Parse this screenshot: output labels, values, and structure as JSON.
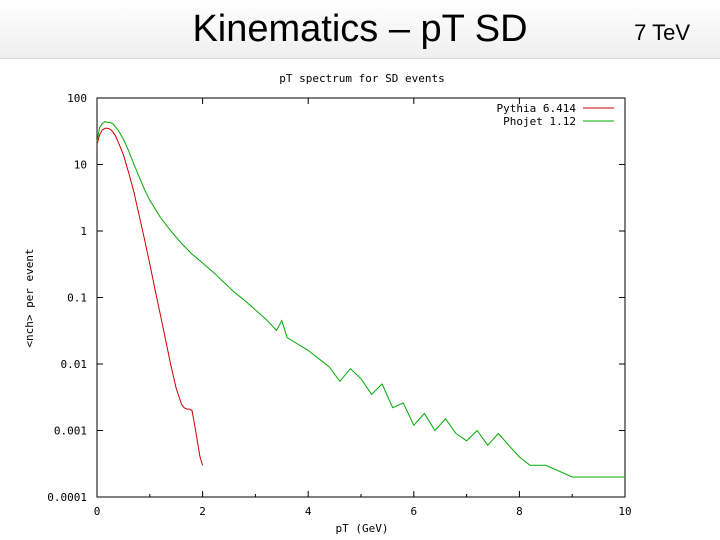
{
  "slide": {
    "title": "Kinematics – pT SD",
    "energy": "7 TeV"
  },
  "chart_data": {
    "type": "line",
    "title": "pT spectrum for SD events",
    "xlabel": "pT (GeV)",
    "ylabel": "<nch> per event",
    "xlim": [
      0,
      10
    ],
    "ylim": [
      0.0001,
      100
    ],
    "yscale": "log",
    "x_ticks": [
      "0",
      "2",
      "4",
      "6",
      "8",
      "10"
    ],
    "y_ticks": [
      "0.0001",
      "0.001",
      "0.01",
      "0.1",
      "1",
      "10",
      "100"
    ],
    "y_tick_values": [
      0.0001,
      0.001,
      0.01,
      0.1,
      1,
      10,
      100
    ],
    "grid": false,
    "legend_position": "top-right",
    "series": [
      {
        "name": "Pythia 6.414",
        "color": "#cc0000",
        "x": [
          0,
          0.05,
          0.1,
          0.15,
          0.2,
          0.25,
          0.3,
          0.35,
          0.4,
          0.5,
          0.6,
          0.7,
          0.8,
          0.9,
          1.0,
          1.1,
          1.2,
          1.3,
          1.4,
          1.5,
          1.6,
          1.65,
          1.7,
          1.75,
          1.8,
          1.85,
          1.9,
          1.95,
          2.0
        ],
        "y": [
          20,
          28,
          33,
          35,
          35,
          34,
          31,
          27,
          22,
          14,
          7.5,
          3.8,
          1.7,
          0.75,
          0.32,
          0.13,
          0.055,
          0.023,
          0.0095,
          0.0043,
          0.0025,
          0.0022,
          0.0021,
          0.0021,
          0.002,
          0.0012,
          0.0007,
          0.0004,
          0.0003
        ]
      },
      {
        "name": "Phojet 1.12",
        "color": "#00aa00",
        "x": [
          0,
          0.05,
          0.1,
          0.15,
          0.2,
          0.25,
          0.3,
          0.4,
          0.5,
          0.6,
          0.7,
          0.8,
          0.9,
          1.0,
          1.2,
          1.4,
          1.6,
          1.8,
          2.0,
          2.2,
          2.4,
          2.6,
          2.8,
          3.0,
          3.2,
          3.4,
          3.5,
          3.6,
          3.8,
          4.0,
          4.2,
          4.4,
          4.6,
          4.8,
          5.0,
          5.2,
          5.4,
          5.6,
          5.8,
          6.0,
          6.2,
          6.4,
          6.6,
          6.8,
          7.0,
          7.2,
          7.4,
          7.6,
          7.8,
          8.0,
          8.2,
          8.5,
          9.0,
          9.5,
          10.0
        ],
        "y": [
          22,
          36,
          41,
          44,
          43,
          43,
          41,
          33,
          24,
          16,
          10,
          6.5,
          4.2,
          2.9,
          1.6,
          1.0,
          0.65,
          0.45,
          0.33,
          0.24,
          0.17,
          0.12,
          0.09,
          0.065,
          0.047,
          0.032,
          0.045,
          0.025,
          0.02,
          0.016,
          0.012,
          0.009,
          0.0055,
          0.0085,
          0.006,
          0.0035,
          0.005,
          0.0022,
          0.0026,
          0.0012,
          0.0018,
          0.001,
          0.0015,
          0.0009,
          0.0007,
          0.001,
          0.0006,
          0.0009,
          0.0006,
          0.0004,
          0.0003,
          0.0003,
          0.0002,
          0.0002,
          0.0002
        ]
      }
    ]
  }
}
